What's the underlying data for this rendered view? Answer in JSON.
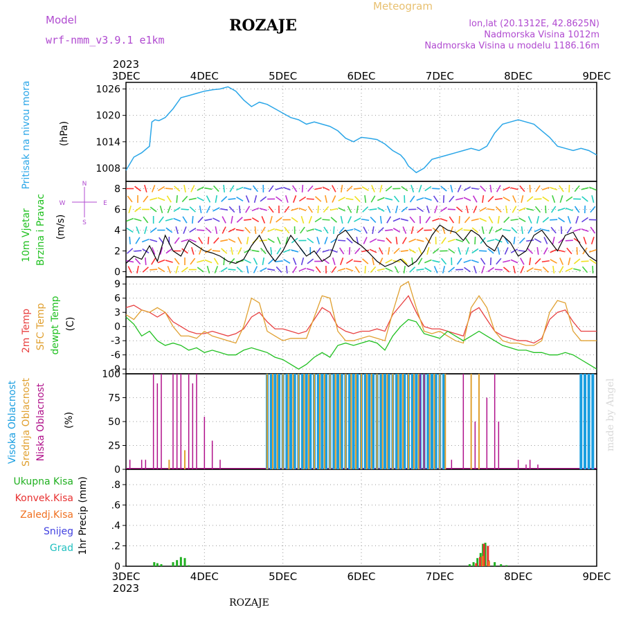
{
  "header": {
    "model_label": "Model",
    "model_name": "wrf-nmm_v3.9.1 e1km",
    "station": "ROZAJE",
    "product": "Meteogram",
    "coords": "lon,lat (20.1312E, 42.8625N)",
    "elevation": "Nadmorska Visina 1012m",
    "model_elevation": "Nadmorska Visina u modelu 1186.16m",
    "footer_station": "ROZAJE",
    "watermark": "made by Angel"
  },
  "time_axis": {
    "year": "2023",
    "labels": [
      "3DEC",
      "4DEC",
      "5DEC",
      "6DEC",
      "7DEC",
      "8DEC",
      "9DEC"
    ]
  },
  "colors": {
    "pressure": "#2aa6e8",
    "high_cloud": "#1a9ee0",
    "mid_cloud": "#e0a030",
    "low_cloud": "#b0108a",
    "temp2m": "#e84040",
    "sfc_temp": "#e0a030",
    "dewpt": "#20c020",
    "total_precip": "#20b020",
    "conv_precip": "#e83030",
    "frozen_precip": "#f07020",
    "snow": "#4040e0",
    "graupel": "#20c0c0"
  },
  "chart_data": [
    {
      "type": "line",
      "name": "pressure",
      "ylabel": [
        "Pritisak na nivou mora",
        "(hPa)"
      ],
      "yticks": [
        1008,
        1014,
        1020,
        1026
      ],
      "ylim": [
        1005,
        1027.5
      ],
      "x": [
        0,
        0.05,
        0.1,
        0.2,
        0.3,
        0.33,
        0.37,
        0.42,
        0.5,
        0.6,
        0.7,
        0.8,
        0.9,
        1.0,
        1.1,
        1.2,
        1.3,
        1.4,
        1.5,
        1.6,
        1.7,
        1.8,
        1.9,
        2.0,
        2.1,
        2.2,
        2.3,
        2.4,
        2.5,
        2.6,
        2.7,
        2.8,
        2.9,
        3.0,
        3.1,
        3.2,
        3.3,
        3.4,
        3.5,
        3.55,
        3.6,
        3.7,
        3.8,
        3.9,
        4.0,
        4.1,
        4.2,
        4.3,
        4.4,
        4.5,
        4.6,
        4.7,
        4.8,
        4.9,
        5.0,
        5.1,
        5.2,
        5.3,
        5.4,
        5.5,
        5.6,
        5.7,
        5.8,
        5.9,
        6.0
      ],
      "series": [
        {
          "values": [
            1007.5,
            1009,
            1010.5,
            1011.5,
            1013,
            1018.5,
            1019,
            1018.8,
            1019.5,
            1021.5,
            1024,
            1024.5,
            1025,
            1025.5,
            1025.8,
            1026,
            1026.5,
            1025.5,
            1023.5,
            1022,
            1023,
            1022.5,
            1021.5,
            1020.5,
            1019.5,
            1019,
            1018,
            1018.5,
            1018,
            1017.5,
            1016.5,
            1014.8,
            1014,
            1015,
            1014.8,
            1014.5,
            1013.5,
            1012,
            1011,
            1010,
            1008.5,
            1007,
            1008,
            1010,
            1010.5,
            1011,
            1011.5,
            1012,
            1012.5,
            1012,
            1013,
            1016,
            1018,
            1018.5,
            1019,
            1018.5,
            1018,
            1016.5,
            1015,
            1013,
            1012.5,
            1012,
            1012.5,
            1012,
            1011
          ]
        }
      ]
    },
    {
      "type": "line",
      "name": "wind",
      "ylabel": [
        "10m Vjetar",
        "Brzina i Pravac",
        "(m/s)"
      ],
      "compass": [
        "N",
        "E",
        "S",
        "W"
      ],
      "yticks": [
        0,
        2,
        4,
        6,
        8
      ],
      "ylim": [
        -0.5,
        8.7
      ],
      "x": [
        0,
        0.1,
        0.2,
        0.3,
        0.4,
        0.5,
        0.6,
        0.7,
        0.8,
        0.9,
        1.0,
        1.1,
        1.2,
        1.3,
        1.4,
        1.5,
        1.6,
        1.7,
        1.8,
        1.9,
        2.0,
        2.1,
        2.2,
        2.3,
        2.4,
        2.5,
        2.6,
        2.7,
        2.8,
        2.9,
        3.0,
        3.1,
        3.2,
        3.3,
        3.4,
        3.5,
        3.6,
        3.7,
        3.8,
        3.9,
        4.0,
        4.1,
        4.2,
        4.3,
        4.4,
        4.5,
        4.6,
        4.7,
        4.8,
        4.9,
        5.0,
        5.1,
        5.2,
        5.3,
        5.4,
        5.5,
        5.6,
        5.7,
        5.8,
        5.9,
        6.0
      ],
      "series": [
        {
          "values": [
            0.8,
            1.5,
            1.2,
            2.5,
            1.0,
            3.5,
            2.0,
            1.5,
            3.0,
            2.5,
            2.0,
            1.8,
            1.5,
            1.0,
            0.8,
            1.2,
            2.5,
            3.5,
            2.0,
            1.0,
            2.0,
            3.5,
            2.5,
            1.5,
            2.0,
            1.0,
            1.5,
            3.5,
            4.0,
            3.0,
            2.5,
            1.8,
            1.0,
            0.5,
            0.8,
            1.2,
            0.5,
            1.0,
            2.0,
            3.5,
            4.5,
            4.0,
            3.8,
            3.0,
            4.0,
            3.5,
            2.5,
            2.0,
            3.5,
            2.8,
            1.5,
            2.0,
            3.5,
            4.0,
            3.0,
            2.0,
            3.5,
            3.8,
            2.5,
            1.5,
            1.0
          ]
        }
      ]
    },
    {
      "type": "line",
      "name": "temperature",
      "ylabel": [
        "2m Temp",
        "SFC Temp",
        "dewpt Temp",
        "(C)"
      ],
      "yticks": [
        -9,
        -6,
        -3,
        0,
        3,
        6,
        9
      ],
      "ylim": [
        -10,
        10.5
      ],
      "x": [
        0,
        0.1,
        0.2,
        0.3,
        0.4,
        0.5,
        0.6,
        0.7,
        0.8,
        0.9,
        1.0,
        1.1,
        1.2,
        1.3,
        1.4,
        1.5,
        1.6,
        1.7,
        1.8,
        1.9,
        2.0,
        2.1,
        2.2,
        2.3,
        2.4,
        2.5,
        2.6,
        2.7,
        2.8,
        2.9,
        3.0,
        3.1,
        3.2,
        3.3,
        3.4,
        3.5,
        3.6,
        3.7,
        3.8,
        3.9,
        4.0,
        4.1,
        4.2,
        4.3,
        4.4,
        4.5,
        4.6,
        4.7,
        4.8,
        4.9,
        5.0,
        5.1,
        5.2,
        5.3,
        5.4,
        5.5,
        5.6,
        5.7,
        5.8,
        5.9,
        6.0
      ],
      "series": [
        {
          "name": "2m Temp",
          "values": [
            4,
            4.5,
            3.5,
            3,
            2,
            3,
            1,
            0,
            -1,
            -1.5,
            -1.5,
            -1,
            -1.5,
            -2,
            -1.5,
            -0.5,
            2,
            3,
            1,
            -0.5,
            -0.5,
            -1,
            -1.5,
            -1,
            1.5,
            4,
            3,
            0,
            -1,
            -1.5,
            -1,
            -1,
            -0.5,
            -1,
            2.5,
            4.5,
            6.5,
            3,
            0,
            -0.5,
            -0.5,
            -1,
            -1.5,
            -2,
            3,
            4,
            1.5,
            -1,
            -2,
            -2.5,
            -3,
            -3,
            -3.5,
            -2.5,
            1.5,
            3,
            3.5,
            1,
            -1,
            -1,
            -1
          ]
        },
        {
          "name": "SFC Temp",
          "values": [
            2.5,
            1.5,
            3.5,
            3,
            4,
            3,
            0,
            -2,
            -2,
            -2.5,
            -1,
            -2,
            -2.5,
            -3,
            -3.5,
            0,
            6,
            5,
            -1,
            -2,
            -3,
            -2.5,
            -2.5,
            -2.5,
            2,
            6.5,
            6,
            -1,
            -3,
            -3,
            -2.5,
            -2,
            -2.5,
            -3,
            3,
            8.5,
            9.5,
            4,
            -1,
            -1.5,
            -1,
            -2,
            -3,
            -3.5,
            4,
            6.5,
            4,
            -1,
            -3,
            -3.5,
            -3.5,
            -4,
            -4,
            -3,
            3,
            5.5,
            5,
            -1,
            -3,
            -3,
            -3
          ]
        },
        {
          "name": "dewpt Temp",
          "values": [
            2,
            0.5,
            -2,
            -1,
            -3,
            -4,
            -3.5,
            -4,
            -5,
            -4.5,
            -5.5,
            -5,
            -5.5,
            -6,
            -6,
            -5,
            -4.5,
            -5,
            -5.5,
            -6.5,
            -7,
            -8,
            -9,
            -8,
            -6.5,
            -5.5,
            -6.5,
            -4,
            -3.5,
            -4,
            -3.5,
            -3,
            -3.5,
            -5,
            -2,
            0,
            1.5,
            1,
            -1.5,
            -2,
            -2.5,
            -1,
            -2,
            -3,
            -2,
            -1,
            -2,
            -3,
            -4,
            -4.5,
            -5,
            -5,
            -5.5,
            -5.5,
            -6,
            -6,
            -5.5,
            -6,
            -7,
            -8,
            -9
          ]
        }
      ]
    },
    {
      "type": "bar",
      "name": "cloud",
      "ylabel": [
        "Visoka Oblacnost",
        "Srednja Oblacnost",
        "Niska Oblacnost",
        "(%)"
      ],
      "yticks": [
        0,
        25,
        50,
        75,
        100
      ],
      "ylim": [
        0,
        100
      ],
      "series": [
        {
          "name": "Visoka Oblacnost",
          "x": [
            1.8,
            1.85,
            1.9,
            1.95,
            2.0,
            2.05,
            2.1,
            2.15,
            2.2,
            2.25,
            2.3,
            2.35,
            2.4,
            2.45,
            2.5,
            2.55,
            2.6,
            2.65,
            2.7,
            2.75,
            2.8,
            2.85,
            2.9,
            2.95,
            3.0,
            3.05,
            3.1,
            3.15,
            3.2,
            3.25,
            3.3,
            3.35,
            3.4,
            3.45,
            3.5,
            3.55,
            3.6,
            3.65,
            3.7,
            3.75,
            3.8,
            3.85,
            3.9,
            3.95,
            4.0,
            4.05,
            5.8,
            5.85,
            5.9,
            5.95
          ],
          "values": [
            100,
            100,
            100,
            100,
            100,
            100,
            100,
            100,
            100,
            100,
            100,
            100,
            100,
            100,
            100,
            100,
            100,
            100,
            100,
            100,
            100,
            100,
            100,
            100,
            100,
            100,
            100,
            100,
            100,
            100,
            100,
            100,
            100,
            100,
            100,
            100,
            100,
            100,
            100,
            100,
            100,
            100,
            100,
            100,
            100,
            100,
            100,
            100,
            100,
            100
          ]
        },
        {
          "name": "Srednja Oblacnost",
          "x": [
            0.55,
            0.75,
            1.8,
            1.87,
            1.93,
            2.0,
            2.07,
            2.13,
            2.2,
            2.27,
            2.33,
            2.4,
            2.47,
            2.53,
            2.6,
            2.67,
            2.73,
            2.8,
            2.87,
            2.93,
            3.0,
            3.07,
            3.13,
            3.2,
            3.27,
            3.33,
            3.4,
            3.47,
            3.53,
            3.6,
            3.67,
            3.73,
            3.8,
            3.87,
            3.93,
            4.0,
            4.07,
            4.4,
            4.5
          ],
          "values": [
            10,
            20,
            100,
            100,
            100,
            100,
            100,
            100,
            100,
            100,
            100,
            100,
            100,
            100,
            100,
            100,
            100,
            100,
            100,
            100,
            100,
            100,
            100,
            100,
            100,
            100,
            100,
            100,
            100,
            100,
            100,
            100,
            100,
            100,
            100,
            100,
            100,
            100,
            100
          ]
        },
        {
          "name": "Niska Oblacnost",
          "x": [
            0.05,
            0.2,
            0.25,
            0.35,
            0.4,
            0.45,
            0.6,
            0.65,
            0.7,
            0.8,
            0.85,
            0.9,
            1.0,
            1.1,
            1.2,
            3.75,
            3.8,
            4.15,
            4.3,
            4.45,
            4.6,
            4.7,
            4.75,
            5.0,
            5.1,
            5.15,
            5.25
          ],
          "values": [
            10,
            10,
            10,
            100,
            90,
            100,
            100,
            100,
            100,
            100,
            90,
            100,
            55,
            30,
            10,
            100,
            100,
            10,
            100,
            50,
            75,
            100,
            50,
            10,
            5,
            10,
            5
          ]
        }
      ]
    },
    {
      "type": "bar",
      "name": "precipitation",
      "ylabel": [
        "1hr Precip (mm)"
      ],
      "legend": [
        "Ukupna Kisa",
        "Konvek.Kisa",
        "Zaledj.Kisa",
        "Snijeg",
        "Grad"
      ],
      "yticks": [
        0,
        0.2,
        0.4,
        0.6,
        0.8
      ],
      "ylim": [
        0,
        0.95
      ],
      "series": [
        {
          "name": "Ukupna Kisa",
          "x": [
            0.36,
            0.4,
            0.45,
            0.6,
            0.65,
            0.7,
            0.75,
            0.8,
            4.38,
            4.43,
            4.48,
            4.52,
            4.55,
            4.58,
            4.62,
            4.7,
            4.78,
            4.85
          ],
          "values": [
            0.04,
            0.03,
            0.02,
            0.04,
            0.06,
            0.09,
            0.08,
            0.01,
            0.02,
            0.04,
            0.08,
            0.13,
            0.22,
            0.23,
            0.06,
            0.04,
            0.02,
            0.01
          ]
        },
        {
          "name": "Konvek.Kisa",
          "x": [
            4.45,
            4.5,
            4.55,
            4.6
          ],
          "values": [
            0.03,
            0.09,
            0.22,
            0.2
          ]
        },
        {
          "name": "Zaledj.Kisa",
          "x": [
            4.52,
            4.6
          ],
          "values": [
            0.1,
            0.05
          ]
        }
      ]
    }
  ]
}
